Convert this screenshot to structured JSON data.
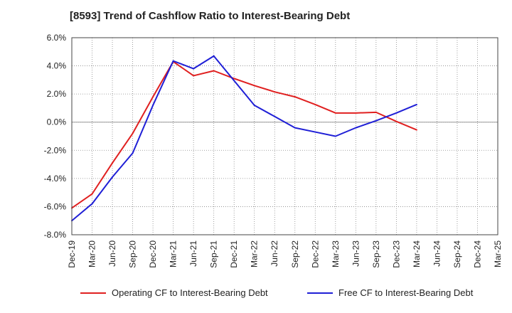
{
  "chart_data": {
    "type": "line",
    "title": "[8593]  Trend of Cashflow Ratio to Interest-Bearing Debt",
    "xlabel": "",
    "ylabel": "",
    "categories": [
      "Dec-19",
      "Mar-20",
      "Jun-20",
      "Sep-20",
      "Dec-20",
      "Mar-21",
      "Jun-21",
      "Sep-21",
      "Dec-21",
      "Mar-22",
      "Jun-22",
      "Sep-22",
      "Dec-22",
      "Mar-23",
      "Jun-23",
      "Sep-23",
      "Dec-23",
      "Mar-24",
      "Jun-24",
      "Sep-24",
      "Dec-24",
      "Mar-25"
    ],
    "ylim": [
      -8.0,
      6.0
    ],
    "yticks": [
      6.0,
      4.0,
      2.0,
      0.0,
      -2.0,
      -4.0,
      -6.0,
      -8.0
    ],
    "ytick_labels": [
      "6.0%",
      "4.0%",
      "2.0%",
      "0.0%",
      "-2.0%",
      "-4.0%",
      "-6.0%",
      "-8.0%"
    ],
    "grid": true,
    "legend_position": "bottom",
    "series": [
      {
        "name": "Operating CF to Interest-Bearing Debt",
        "color": "#e02020",
        "values": [
          -6.1,
          -5.1,
          -2.9,
          -0.8,
          1.8,
          4.3,
          3.3,
          3.65,
          3.1,
          2.6,
          2.15,
          1.8,
          1.25,
          0.65,
          0.65,
          0.7,
          0.05,
          -0.55,
          null,
          null,
          null,
          null
        ]
      },
      {
        "name": "Free CF to Interest-Bearing Debt",
        "color": "#1f1fd6",
        "values": [
          -7.0,
          -5.8,
          -3.9,
          -2.2,
          1.2,
          4.35,
          3.8,
          4.7,
          2.95,
          1.2,
          0.4,
          -0.4,
          -0.7,
          -1.0,
          -0.4,
          0.1,
          0.65,
          1.25,
          null,
          null,
          null,
          null
        ]
      }
    ]
  }
}
